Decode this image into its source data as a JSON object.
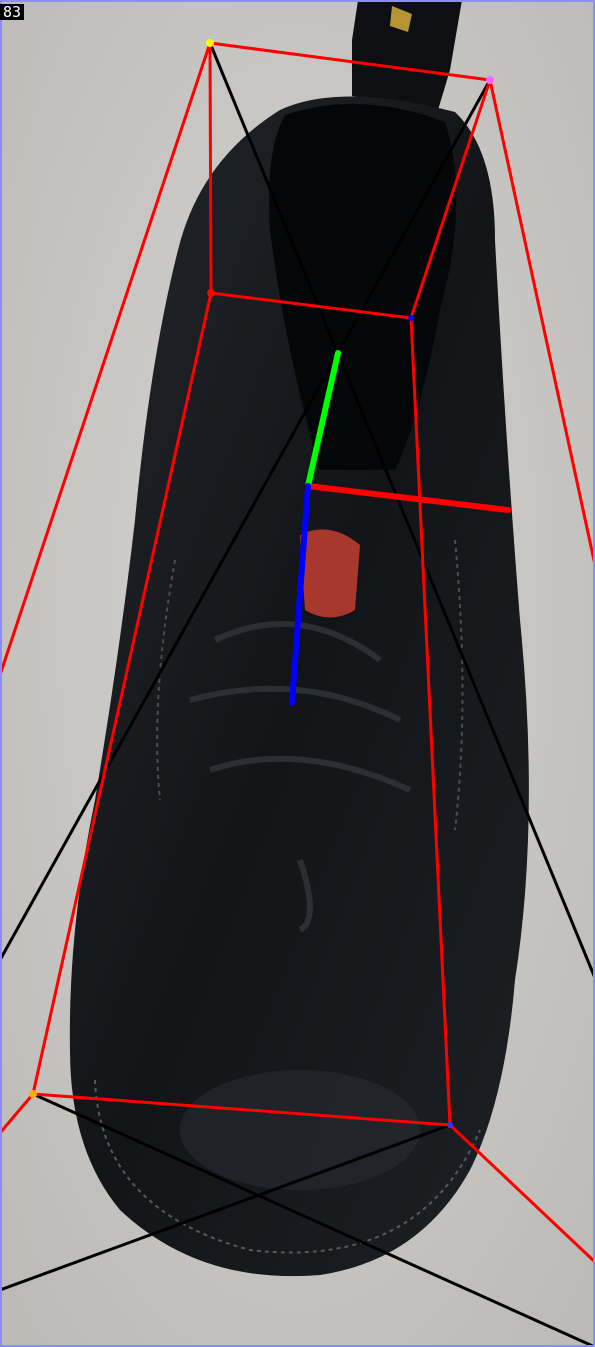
{
  "frame": {
    "label": "83"
  },
  "colors": {
    "floor": "#cfcdc9",
    "boot_leather": "#15171b",
    "bbox_edges": "#ff0000",
    "bbox_diagonals": "#000000",
    "axis_x": "#ff0000",
    "axis_y": "#00ff00",
    "axis_z": "#0000ff",
    "image_border": "#8c8cff"
  },
  "icons": {
    "subject": "boot-icon"
  }
}
